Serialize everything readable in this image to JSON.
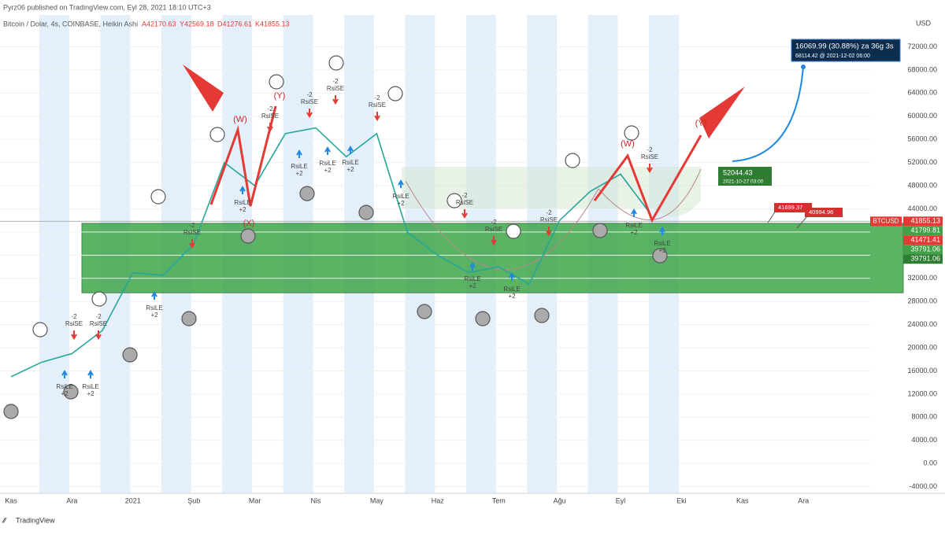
{
  "header": {
    "publisher": "Pyrz06 published on TradingView.com, Eyl 28, 2021 18:10 UTC+3",
    "symbol": "Bitcoin / Dolar, 4s, COINBASE, Heikin Ashi",
    "ohlc": [
      "A42170.63",
      "Y42569.18",
      "D41276.61",
      "K41855.13"
    ]
  },
  "chart_data": {
    "type": "line",
    "categories": [
      "Kas",
      null,
      "Ara",
      null,
      "2021",
      null,
      "Şub",
      null,
      "Mar",
      null,
      "Nis",
      null,
      "May",
      null,
      "Haz",
      null,
      "Tem",
      null,
      "Ağu",
      null,
      "Eyl",
      null,
      "Eki",
      null,
      "Kas",
      null,
      "Ara",
      null
    ],
    "series": [
      {
        "color": "#26a69a",
        "values": [
          15000,
          17500,
          19000,
          23000,
          33000,
          32500,
          38000,
          52000,
          48000,
          57000,
          58000,
          53000,
          57000,
          40000,
          36000,
          33000,
          34000,
          31000,
          42000,
          47000,
          50000,
          43000,
          null,
          null,
          null,
          null,
          null,
          null
        ]
      }
    ],
    "ylim": [
      -5000,
      77500
    ],
    "yticks": [
      {
        "value": -4000,
        "label": "-4000.00"
      },
      {
        "value": 0,
        "label": "0.00"
      },
      {
        "value": 4000,
        "label": "4000.00"
      },
      {
        "value": 8000,
        "label": "8000.00"
      },
      {
        "value": 12000,
        "label": "12000.00"
      },
      {
        "value": 16000,
        "label": "16000.00"
      },
      {
        "value": 20000,
        "label": "20000.00"
      },
      {
        "value": 24000,
        "label": "24000.00"
      },
      {
        "value": 28000,
        "label": "28000.00"
      },
      {
        "value": 32000,
        "label": "32000.00"
      },
      {
        "value": 36000,
        "label": "36000.00"
      },
      {
        "value": 40000,
        "label": "40000.00"
      },
      {
        "value": 44000,
        "label": "44000.00"
      },
      {
        "value": 48000,
        "label": "48000.00"
      },
      {
        "value": 52000,
        "label": "52000.00"
      },
      {
        "value": 56000,
        "label": "56000.00"
      },
      {
        "value": 60000,
        "label": "60000.00"
      },
      {
        "value": 64000,
        "label": "64000.00"
      },
      {
        "value": 68000,
        "label": "68000.00"
      },
      {
        "value": 72000,
        "label": "72000.00"
      }
    ],
    "axis_unit": "USD",
    "zone": [
      29500,
      41500
    ],
    "symbol_label": "BTCUSD",
    "price_labels": [
      41855.13,
      41799.81,
      41471.41,
      39791.06,
      39791.06
    ],
    "price_label_colors": [
      "#e53935",
      "#43a047",
      "#e53935",
      "#43a047",
      "#2e7d32"
    ],
    "wave_labels": [
      "(W)",
      "(X)",
      "(Y)",
      "(W)",
      "(Y)"
    ],
    "signals": [
      {
        "size": "-2",
        "label": "RsiSE"
      },
      {
        "size": "-2",
        "label": "RsiSE"
      },
      {
        "label": "RsiLE",
        "size": "+2"
      },
      {
        "label": "RsiLE",
        "size": "+2"
      },
      {
        "size": "-2",
        "label": "RsiSE"
      },
      {
        "label": "RsiLE",
        "size": "+2"
      },
      {
        "label": "RsiLE",
        "size": "+2"
      },
      {
        "size": "-2",
        "label": "RsiSE"
      },
      {
        "size": "-2",
        "label": "RsiSE"
      },
      {
        "size": "-2",
        "label": "RsiSE"
      },
      {
        "label": "RsiLE",
        "size": "+2"
      },
      {
        "label": "RsiLE",
        "size": "+2"
      },
      {
        "label": "RsiLE",
        "size": "+2"
      },
      {
        "size": "-2",
        "label": "RsiSE"
      },
      {
        "label": "RsiLE",
        "size": "+2"
      },
      {
        "size": "-2",
        "label": "RsiSE"
      },
      {
        "size": "-2",
        "label": "RsiSE"
      },
      {
        "label": "RsiLE",
        "size": "+2"
      },
      {
        "label": "RsiLE",
        "size": "+2"
      },
      {
        "size": "-2",
        "label": "RsiSE"
      },
      {
        "size": "-2",
        "label": "RsiSE"
      },
      {
        "label": "RsiLE",
        "size": "+2"
      },
      {
        "label": "RsiLE",
        "size": "+2"
      }
    ]
  },
  "callouts": {
    "target": "16069.99 (30.88%) za 36g 3s",
    "target_sub": "68114.42 @ 2021-12-02 06:00",
    "start": "52044.43",
    "start_sub": "2021-10-27 03:00",
    "alert1": "41699.37",
    "alert2": "40994.96"
  },
  "footer": "TradingView"
}
